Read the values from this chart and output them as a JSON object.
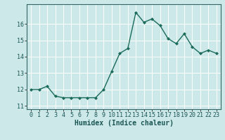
{
  "x": [
    0,
    1,
    2,
    3,
    4,
    5,
    6,
    7,
    8,
    9,
    10,
    11,
    12,
    13,
    14,
    15,
    16,
    17,
    18,
    19,
    20,
    21,
    22,
    23
  ],
  "y": [
    12.0,
    12.0,
    12.2,
    11.6,
    11.5,
    11.5,
    11.5,
    11.5,
    11.5,
    12.0,
    13.1,
    14.2,
    14.5,
    16.7,
    16.1,
    16.3,
    15.9,
    15.1,
    14.8,
    15.4,
    14.6,
    14.2,
    14.4,
    14.2
  ],
  "line_color": "#1a6b5a",
  "marker": "D",
  "marker_size": 2,
  "background_color": "#cce8e8",
  "grid_color": "#ffffff",
  "xlabel": "Humidex (Indice chaleur)",
  "ylim": [
    10.8,
    17.2
  ],
  "xlim": [
    -0.5,
    23.5
  ],
  "yticks": [
    11,
    12,
    13,
    14,
    15,
    16
  ],
  "xticks": [
    0,
    1,
    2,
    3,
    4,
    5,
    6,
    7,
    8,
    9,
    10,
    11,
    12,
    13,
    14,
    15,
    16,
    17,
    18,
    19,
    20,
    21,
    22,
    23
  ],
  "xlabel_fontsize": 7,
  "tick_fontsize": 6,
  "line_width": 1.0,
  "spine_color": "#336666"
}
